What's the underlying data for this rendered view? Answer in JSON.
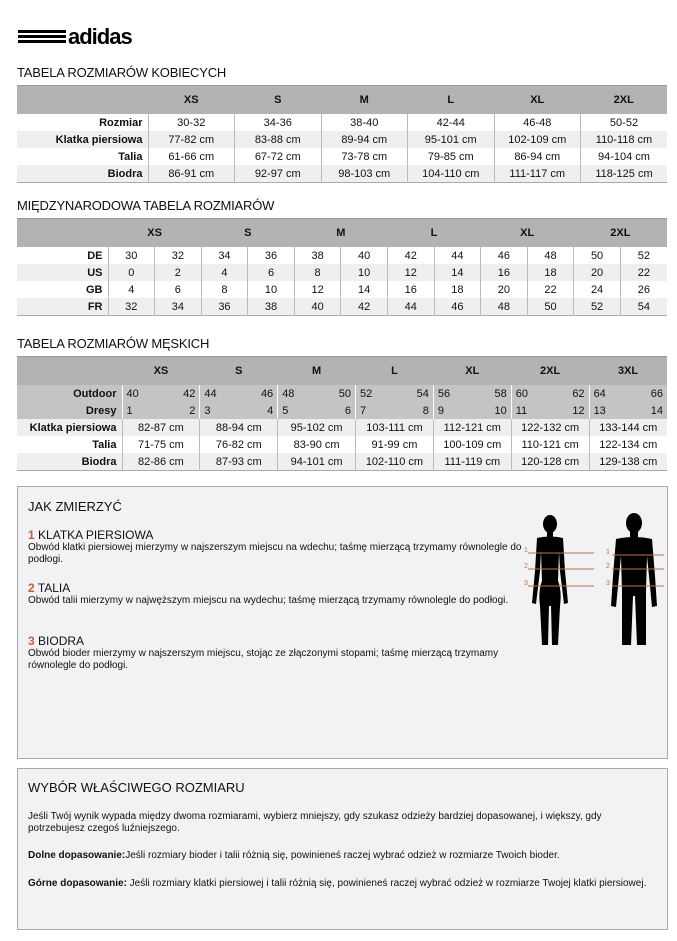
{
  "brand": {
    "logo": "adidas",
    "logo_color": "#000000"
  },
  "women": {
    "title": "TABELA ROZMIARÓW KOBIECYCH",
    "sizes": [
      "XS",
      "S",
      "M",
      "L",
      "XL",
      "2XL"
    ],
    "rows": [
      {
        "label": "Rozmiar",
        "values": [
          "30-32",
          "34-36",
          "38-40",
          "42-44",
          "46-48",
          "50-52"
        ]
      },
      {
        "label": "Klatka piersiowa",
        "values": [
          "77-82 cm",
          "83-88 cm",
          "89-94 cm",
          "95-101 cm",
          "102-109 cm",
          "110-118 cm"
        ]
      },
      {
        "label": "Talia",
        "values": [
          "61-66 cm",
          "67-72 cm",
          "73-78 cm",
          "79-85 cm",
          "86-94 cm",
          "94-104 cm"
        ]
      },
      {
        "label": "Biodra",
        "values": [
          "86-91 cm",
          "92-97 cm",
          "98-103 cm",
          "104-110 cm",
          "111-117 cm",
          "118-125 cm"
        ]
      }
    ]
  },
  "intl": {
    "title": "MIĘDZYNARODOWA TABELA ROZMIARÓW",
    "sizes": [
      "XS",
      "S",
      "M",
      "L",
      "XL",
      "2XL"
    ],
    "rows": [
      {
        "label": "DE",
        "values": [
          "30",
          "32",
          "34",
          "36",
          "38",
          "40",
          "42",
          "44",
          "46",
          "48",
          "50",
          "52"
        ]
      },
      {
        "label": "US",
        "values": [
          "0",
          "2",
          "4",
          "6",
          "8",
          "10",
          "12",
          "14",
          "16",
          "18",
          "20",
          "22"
        ]
      },
      {
        "label": "GB",
        "values": [
          "4",
          "6",
          "8",
          "10",
          "12",
          "14",
          "16",
          "18",
          "20",
          "22",
          "24",
          "26"
        ]
      },
      {
        "label": "FR",
        "values": [
          "32",
          "34",
          "36",
          "38",
          "40",
          "42",
          "44",
          "46",
          "48",
          "50",
          "52",
          "54"
        ]
      }
    ]
  },
  "men": {
    "title": "TABELA ROZMIARÓW MĘSKICH",
    "sizes": [
      "XS",
      "S",
      "M",
      "L",
      "XL",
      "2XL",
      "3XL"
    ],
    "sub_rows": [
      {
        "label": "Outdoor",
        "values": [
          "40",
          "42",
          "44",
          "46",
          "48",
          "50",
          "52",
          "54",
          "56",
          "58",
          "60",
          "62",
          "64",
          "66"
        ]
      },
      {
        "label": "Dresy",
        "values": [
          "1",
          "2",
          "3",
          "4",
          "5",
          "6",
          "7",
          "8",
          "9",
          "10",
          "11",
          "12",
          "13",
          "14"
        ]
      }
    ],
    "rows": [
      {
        "label": "Klatka piersiowa",
        "values": [
          "82-87 cm",
          "88-94 cm",
          "95-102 cm",
          "103-111 cm",
          "112-121 cm",
          "122-132 cm",
          "133-144 cm"
        ]
      },
      {
        "label": "Talia",
        "values": [
          "71-75 cm",
          "76-82 cm",
          "83-90 cm",
          "91-99 cm",
          "100-109 cm",
          "110-121 cm",
          "122-134 cm"
        ]
      },
      {
        "label": "Biodra",
        "values": [
          "82-86 cm",
          "87-93 cm",
          "94-101 cm",
          "102-110 cm",
          "111-119 cm",
          "120-128 cm",
          "129-138 cm"
        ]
      }
    ]
  },
  "measure": {
    "title": "JAK ZMIERZYĆ",
    "accent": "#c0603f",
    "items": [
      {
        "num": "1",
        "heading": "KLATKA PIERSIOWA",
        "text": "Obwód klatki piersiowej mierzymy w najszerszym miejscu na wdechu; taśmę mierzącą trzymamy równolegle do podłogi."
      },
      {
        "num": "2",
        "heading": "TALIA",
        "text": "Obwód talii mierzymy w najwęższym miejscu na wydechu; taśmę mierzącą trzymamy równolegle do podłogi."
      },
      {
        "num": "3",
        "heading": "BIODRA",
        "text": "Obwód bioder mierzymy w najszerszym miejscu, stojąc ze złączonymi stopami; taśmę mierzącą trzymamy równolegle do podłogi."
      }
    ],
    "figure_labels": [
      "1",
      "2",
      "3"
    ]
  },
  "choose": {
    "title": "WYBÓR WŁAŚCIWEGO ROZMIARU",
    "p1": "Jeśli Twój wynik wypada między dwoma rozmiarami, wybierz mniejszy, gdy szukasz odzieży bardziej dopasowanej, i większy, gdy potrzebujesz czegoś luźniejszego.",
    "p2_bold": "Dolne dopasowanie:",
    "p2": "Jeśli rozmiary bioder i talii różnią się, powinieneś raczej wybrać odzież w rozmiarze Twoich bioder.",
    "p3_bold": "Górne dopasowanie:",
    "p3": " Jeśli rozmiary klatki piersiowej i talii różnią się, powinieneś raczej wybrać odzież w rozmiarze Twojej klatki piersiowej."
  }
}
